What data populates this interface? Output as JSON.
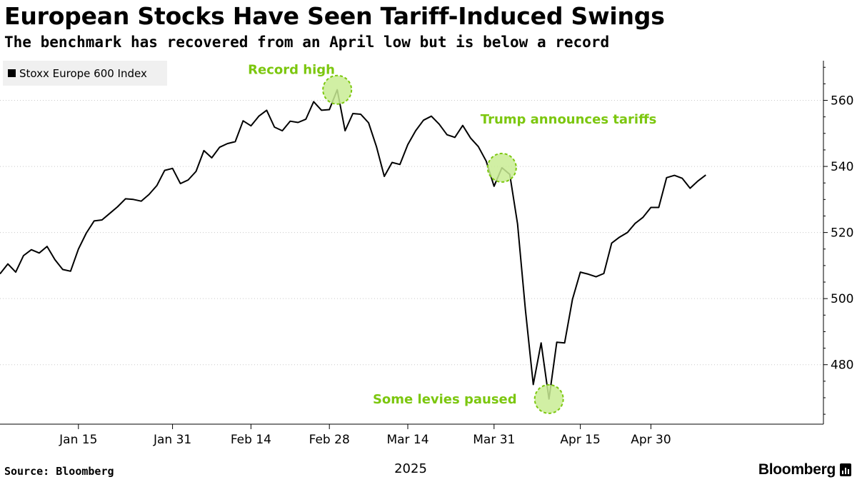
{
  "header": {
    "title": "European Stocks Have Seen Tariff-Induced Swings",
    "subtitle": "The benchmark has recovered from an April low but is below a record"
  },
  "footer": {
    "source": "Source: Bloomberg",
    "brand": "Bloomberg"
  },
  "colors": {
    "line": "#000000",
    "annotation_text": "#7cc70f",
    "annotation_fill": "#c9ec94",
    "annotation_stroke": "#7cc70f",
    "grid": "#c8c8c8",
    "legend_bg": "#f0f0f0"
  },
  "chart_data": {
    "type": "line",
    "title": "European Stocks Have Seen Tariff-Induced Swings",
    "xlabel": "2025",
    "ylabel": "",
    "ylim": [
      462,
      572
    ],
    "yticks": [
      480,
      500,
      520,
      540,
      560
    ],
    "xlim": [
      0,
      105
    ],
    "grid": "horizontal dotted",
    "legend": "top-left",
    "x_ticks": [
      {
        "label": "Jan 15",
        "x": 10
      },
      {
        "label": "Jan 31",
        "x": 22
      },
      {
        "label": "Feb 14",
        "x": 32
      },
      {
        "label": "Feb 28",
        "x": 42
      },
      {
        "label": "Mar 14",
        "x": 52
      },
      {
        "label": "Mar 31",
        "x": 63
      },
      {
        "label": "Apr 15",
        "x": 74
      },
      {
        "label": "Apr 30",
        "x": 83
      }
    ],
    "series": [
      {
        "name": "Stoxx Europe 600 Index",
        "values": [
          507.5,
          510.5,
          508.0,
          513.0,
          514.8,
          513.8,
          515.8,
          511.8,
          508.8,
          508.3,
          515.0,
          519.8,
          523.5,
          523.8,
          525.8,
          527.8,
          530.2,
          530.0,
          529.5,
          531.5,
          534.2,
          538.8,
          539.4,
          534.8,
          535.9,
          538.5,
          544.8,
          542.6,
          545.8,
          546.9,
          547.5,
          553.8,
          552.3,
          555.2,
          557.0,
          551.9,
          550.8,
          553.7,
          553.3,
          554.3,
          559.6,
          557.0,
          557.2,
          563.2,
          550.8,
          556.0,
          555.8,
          553.2,
          546.0,
          537.0,
          541.2,
          540.6,
          546.6,
          550.8,
          554.0,
          555.2,
          552.8,
          549.6,
          548.8,
          552.4,
          548.6,
          546.0,
          541.6,
          534.0,
          539.6,
          537.6,
          522.6,
          496.6,
          474.0,
          486.6,
          469.6,
          486.8,
          486.6,
          499.8,
          508.0,
          507.4,
          506.6,
          507.6,
          516.8,
          518.6,
          520.0,
          522.8,
          524.6,
          527.6,
          527.6,
          536.6,
          537.3,
          536.4,
          533.4,
          535.6,
          537.4
        ]
      }
    ],
    "annotations": [
      {
        "label": "Record high",
        "x": 43,
        "y": 563.2
      },
      {
        "label": "Trump announces tariffs",
        "x": 64,
        "y": 539.6
      },
      {
        "label": "Some levies paused",
        "x": 70,
        "y": 469.6
      }
    ]
  }
}
